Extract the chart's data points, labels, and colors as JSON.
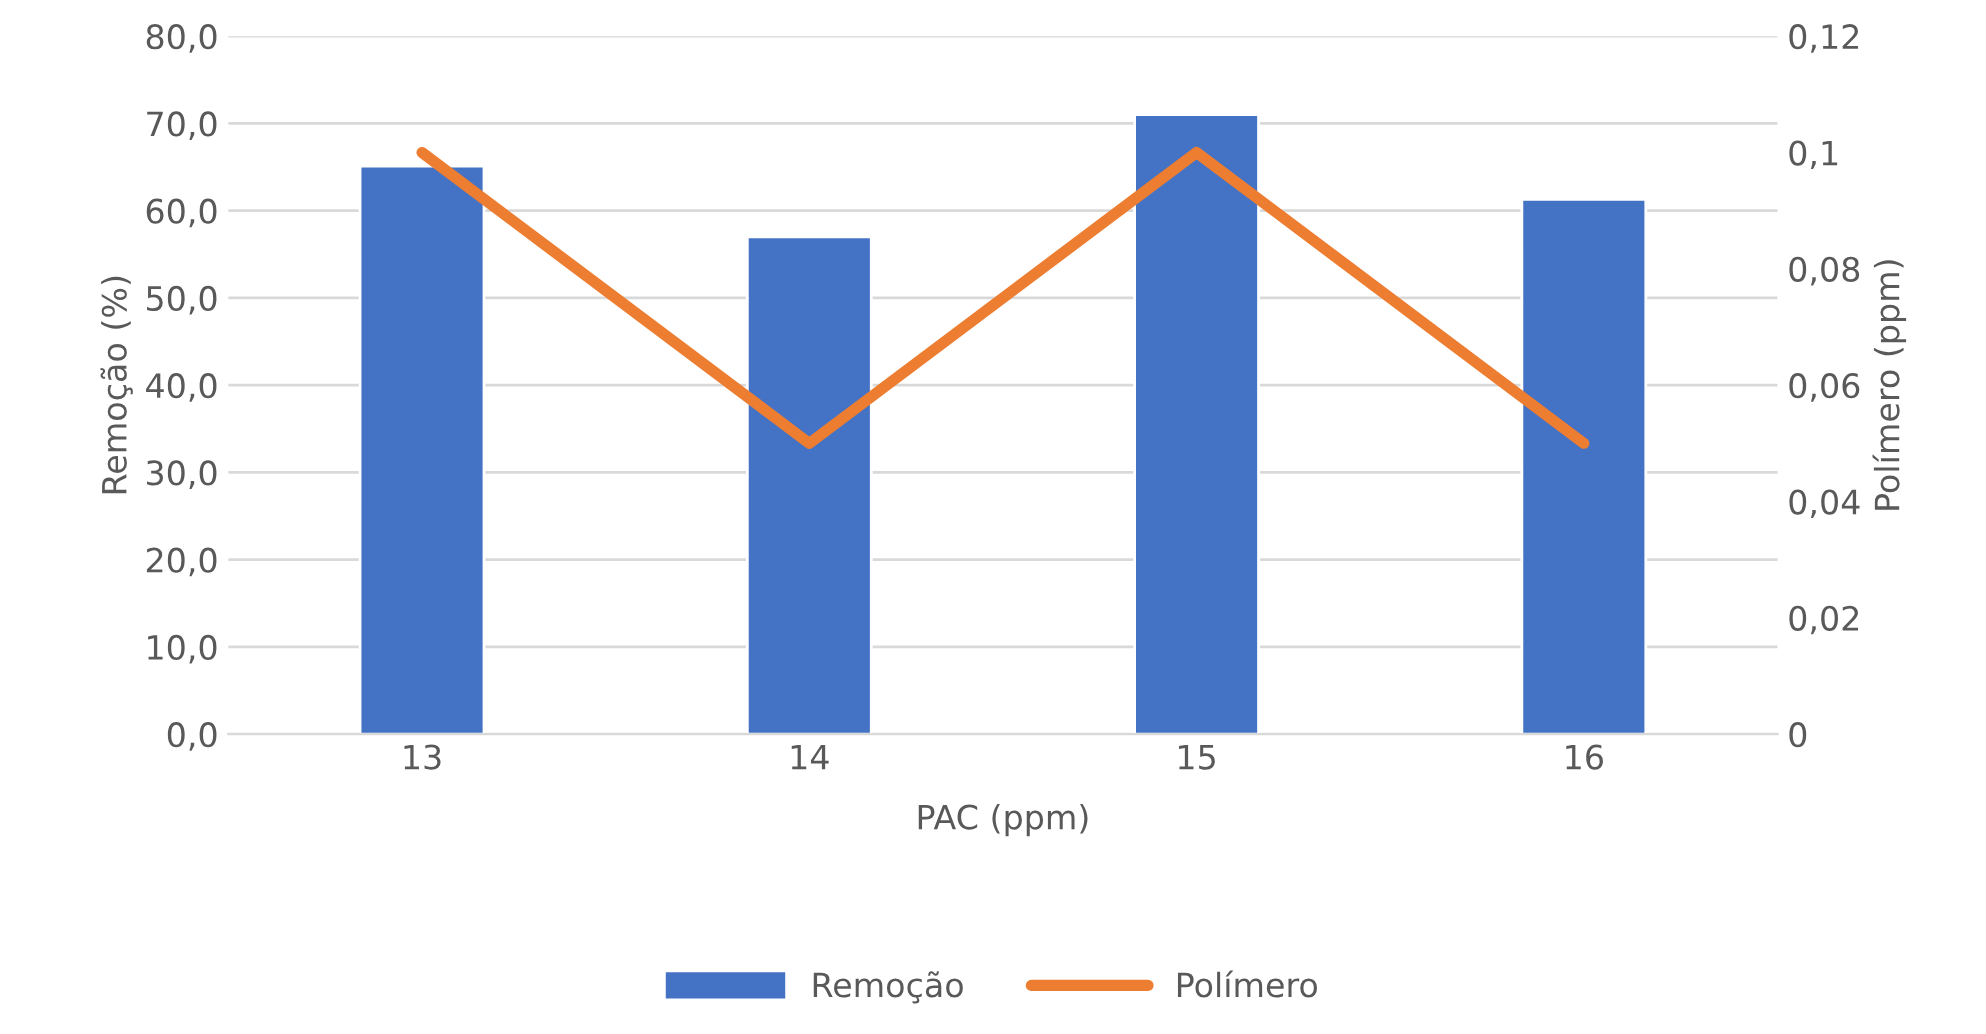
{
  "chart_data": {
    "type": "bar",
    "xlabel": "PAC (ppm)",
    "ylabel": "Remoção (%)",
    "y2label": "Polímero (ppm)",
    "categories": [
      "13",
      "14",
      "15",
      "16"
    ],
    "series": [
      {
        "name": "Remoção",
        "color": "#4472c4",
        "values": [
          65.1,
          57.0,
          71.0,
          61.3
        ]
      },
      {
        "name": "Polímero",
        "type": "line",
        "axis": "y2",
        "color": "#ed7d31",
        "values": [
          0.1,
          0.05,
          0.1,
          0.05
        ]
      }
    ],
    "ylim": [
      0,
      80
    ],
    "yticks": [
      {
        "value": 0,
        "label": "0,0"
      },
      {
        "value": 10,
        "label": "10,0"
      },
      {
        "value": 20,
        "label": "20,0"
      },
      {
        "value": 30,
        "label": "30,0"
      },
      {
        "value": 40,
        "label": "40,0"
      },
      {
        "value": 50,
        "label": "50,0"
      },
      {
        "value": 60,
        "label": "60,0"
      },
      {
        "value": 70,
        "label": "70,0"
      },
      {
        "value": 80,
        "label": "80,0"
      }
    ],
    "y2lim": [
      0,
      0.12
    ],
    "y2ticks": [
      0,
      {
        "value": 0.02,
        "label": "0,02"
      },
      {
        "value": 0.04,
        "label": "0,04"
      },
      {
        "value": 0.06,
        "label": "0,06"
      },
      {
        "value": 0.08,
        "label": "0,08"
      },
      {
        "value": 0.1,
        "label": "0,1"
      },
      {
        "value": 0.12,
        "label": "0,12"
      }
    ],
    "grid": "y",
    "legend": "bottom"
  }
}
